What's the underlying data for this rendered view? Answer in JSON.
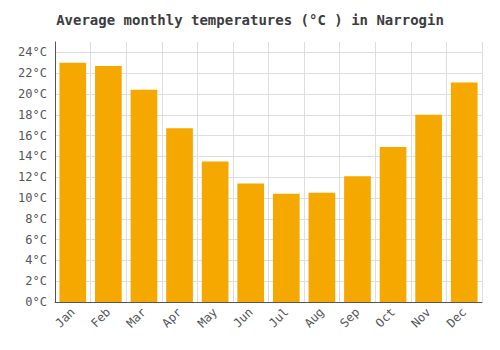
{
  "chart_data": {
    "type": "bar",
    "title": "Average monthly temperatures (°C ) in Narrogin",
    "categories": [
      "Jan",
      "Feb",
      "Mar",
      "Apr",
      "May",
      "Jun",
      "Jul",
      "Aug",
      "Sep",
      "Oct",
      "Nov",
      "Dec"
    ],
    "values": [
      23.0,
      22.7,
      20.4,
      16.7,
      13.5,
      11.4,
      10.4,
      10.5,
      12.1,
      14.9,
      18.0,
      21.1
    ],
    "color": "#F5A800",
    "ylim": [
      0,
      25
    ],
    "yticks": [
      {
        "value": 0,
        "label": "0°C"
      },
      {
        "value": 2,
        "label": "2°C"
      },
      {
        "value": 4,
        "label": "4°C"
      },
      {
        "value": 6,
        "label": "6°C"
      },
      {
        "value": 8,
        "label": "8°C"
      },
      {
        "value": 10,
        "label": "10°C"
      },
      {
        "value": 12,
        "label": "12°C"
      },
      {
        "value": 14,
        "label": "14°C"
      },
      {
        "value": 16,
        "label": "16°C"
      },
      {
        "value": 18,
        "label": "18°C"
      },
      {
        "value": 20,
        "label": "20°C"
      },
      {
        "value": 22,
        "label": "22°C"
      },
      {
        "value": 24,
        "label": "24°C"
      }
    ],
    "grid": true
  }
}
